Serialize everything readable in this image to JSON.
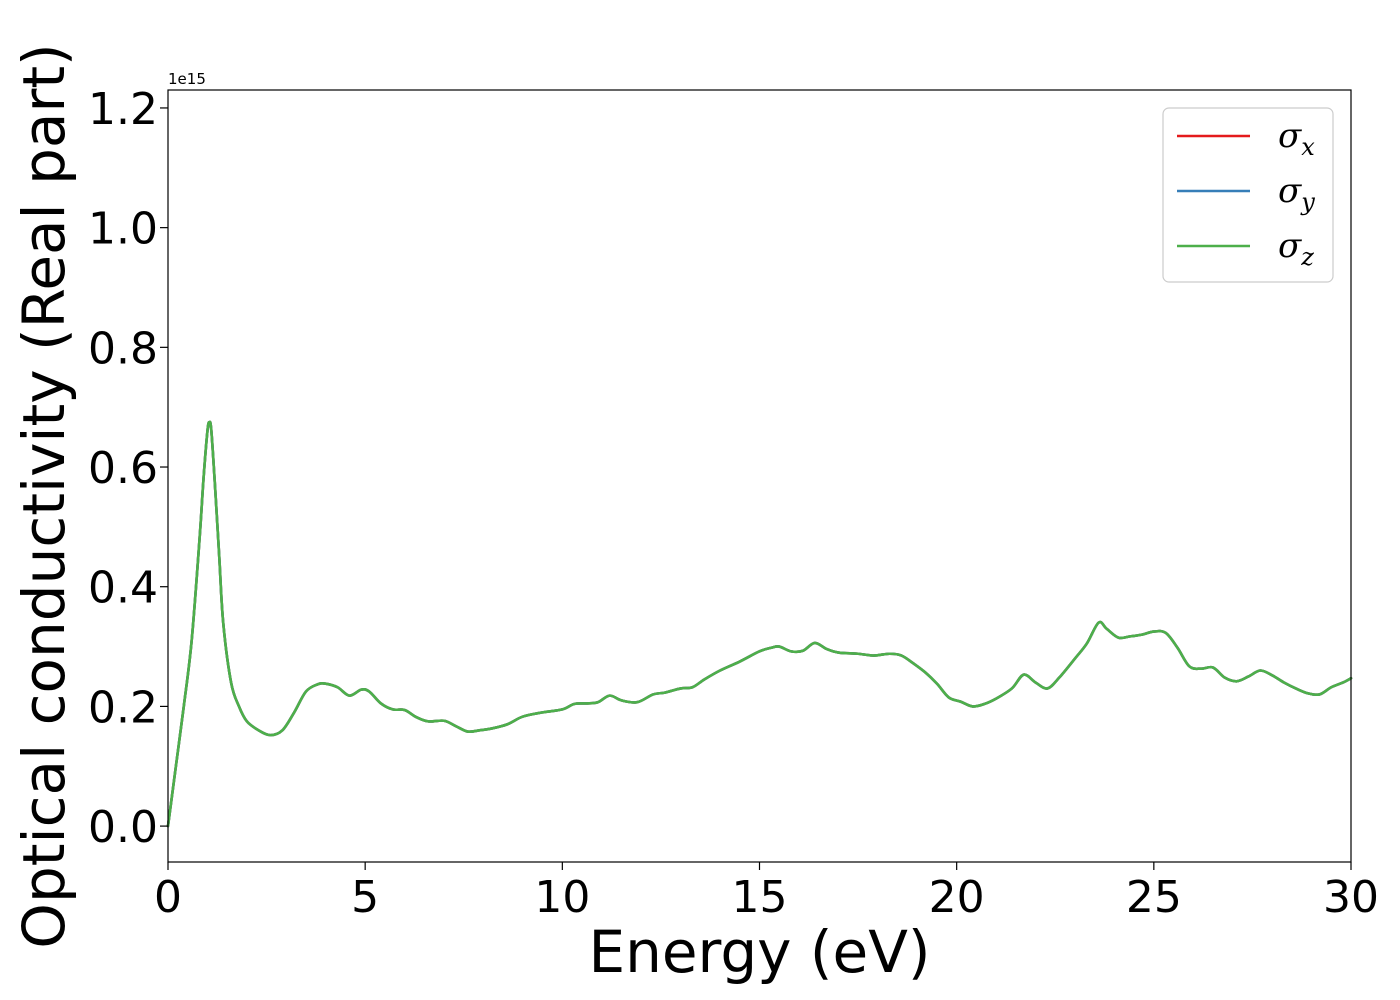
{
  "chart_data": {
    "type": "line",
    "xlabel": "Energy (eV)",
    "ylabel": "Optical conductivity (Real part)",
    "y_offset_label": "1e15",
    "xlim": [
      0,
      30
    ],
    "ylim": [
      -0.06,
      1.23
    ],
    "x_ticks": [
      0,
      5,
      10,
      15,
      20,
      25,
      30
    ],
    "x_tick_labels": [
      "0",
      "5",
      "10",
      "15",
      "20",
      "25",
      "30"
    ],
    "y_ticks": [
      0.0,
      0.2,
      0.4,
      0.6,
      0.8,
      1.0,
      1.2
    ],
    "y_tick_labels": [
      "0.0",
      "0.2",
      "0.4",
      "0.6",
      "0.8",
      "1.0",
      "1.2"
    ],
    "grid": false,
    "legend_position": "top-right",
    "series": [
      {
        "name": "σx",
        "symbol": "σ",
        "subscript": "x",
        "color": "#e41a1c",
        "x": [
          0,
          0.2,
          0.4,
          0.6,
          0.8,
          0.9,
          1.0,
          1.05,
          1.1,
          1.2,
          1.3,
          1.4,
          1.6,
          1.8,
          2.0,
          2.3,
          2.6,
          2.9,
          3.2,
          3.5,
          3.8,
          4.0,
          4.3,
          4.6,
          4.9,
          5.1,
          5.4,
          5.7,
          6.0,
          6.3,
          6.6,
          7.0,
          7.3,
          7.6,
          7.9,
          8.2,
          8.6,
          9.0,
          9.5,
          10.0,
          10.3,
          10.6,
          10.9,
          11.2,
          11.5,
          11.9,
          12.3,
          12.6,
          13.0,
          13.3,
          13.6,
          14.0,
          14.5,
          15.0,
          15.3,
          15.5,
          15.8,
          16.1,
          16.4,
          16.7,
          17.0,
          17.5,
          17.9,
          18.3,
          18.6,
          18.9,
          19.2,
          19.5,
          19.8,
          20.1,
          20.4,
          20.7,
          21.0,
          21.4,
          21.7,
          22.0,
          22.3,
          22.6,
          23.0,
          23.3,
          23.6,
          23.8,
          24.1,
          24.4,
          24.7,
          25.0,
          25.3,
          25.6,
          25.9,
          26.2,
          26.5,
          26.8,
          27.1,
          27.4,
          27.7,
          28.0,
          28.3,
          28.6,
          28.9,
          29.2,
          29.5,
          29.8,
          30.0
        ],
        "values": [
          0.0,
          0.1,
          0.2,
          0.31,
          0.48,
          0.58,
          0.66,
          0.675,
          0.66,
          0.56,
          0.45,
          0.34,
          0.24,
          0.2,
          0.175,
          0.16,
          0.152,
          0.16,
          0.19,
          0.225,
          0.237,
          0.238,
          0.232,
          0.218,
          0.228,
          0.225,
          0.205,
          0.195,
          0.194,
          0.182,
          0.175,
          0.176,
          0.167,
          0.158,
          0.16,
          0.163,
          0.17,
          0.183,
          0.19,
          0.195,
          0.204,
          0.205,
          0.207,
          0.218,
          0.21,
          0.207,
          0.22,
          0.223,
          0.23,
          0.232,
          0.245,
          0.26,
          0.275,
          0.292,
          0.298,
          0.3,
          0.292,
          0.293,
          0.306,
          0.296,
          0.29,
          0.288,
          0.285,
          0.288,
          0.285,
          0.272,
          0.257,
          0.238,
          0.215,
          0.208,
          0.2,
          0.204,
          0.213,
          0.23,
          0.253,
          0.24,
          0.23,
          0.248,
          0.28,
          0.305,
          0.34,
          0.33,
          0.315,
          0.317,
          0.32,
          0.325,
          0.323,
          0.298,
          0.267,
          0.263,
          0.265,
          0.248,
          0.242,
          0.25,
          0.26,
          0.252,
          0.24,
          0.23,
          0.222,
          0.22,
          0.232,
          0.24,
          0.247
        ]
      },
      {
        "name": "σy",
        "symbol": "σ",
        "subscript": "y",
        "color": "#377eb8",
        "x": [
          0,
          0.2,
          0.4,
          0.6,
          0.8,
          0.9,
          1.0,
          1.05,
          1.1,
          1.2,
          1.3,
          1.4,
          1.6,
          1.8,
          2.0,
          2.3,
          2.6,
          2.9,
          3.2,
          3.5,
          3.8,
          4.0,
          4.3,
          4.6,
          4.9,
          5.1,
          5.4,
          5.7,
          6.0,
          6.3,
          6.6,
          7.0,
          7.3,
          7.6,
          7.9,
          8.2,
          8.6,
          9.0,
          9.5,
          10.0,
          10.3,
          10.6,
          10.9,
          11.2,
          11.5,
          11.9,
          12.3,
          12.6,
          13.0,
          13.3,
          13.6,
          14.0,
          14.5,
          15.0,
          15.3,
          15.5,
          15.8,
          16.1,
          16.4,
          16.7,
          17.0,
          17.5,
          17.9,
          18.3,
          18.6,
          18.9,
          19.2,
          19.5,
          19.8,
          20.1,
          20.4,
          20.7,
          21.0,
          21.4,
          21.7,
          22.0,
          22.3,
          22.6,
          23.0,
          23.3,
          23.6,
          23.8,
          24.1,
          24.4,
          24.7,
          25.0,
          25.3,
          25.6,
          25.9,
          26.2,
          26.5,
          26.8,
          27.1,
          27.4,
          27.7,
          28.0,
          28.3,
          28.6,
          28.9,
          29.2,
          29.5,
          29.8,
          30.0
        ],
        "values": [
          0.0,
          0.1,
          0.2,
          0.31,
          0.48,
          0.58,
          0.66,
          0.675,
          0.66,
          0.56,
          0.45,
          0.34,
          0.24,
          0.2,
          0.175,
          0.16,
          0.152,
          0.16,
          0.19,
          0.225,
          0.237,
          0.238,
          0.232,
          0.218,
          0.228,
          0.225,
          0.205,
          0.195,
          0.194,
          0.182,
          0.175,
          0.176,
          0.167,
          0.158,
          0.16,
          0.163,
          0.17,
          0.183,
          0.19,
          0.195,
          0.204,
          0.205,
          0.207,
          0.218,
          0.21,
          0.207,
          0.22,
          0.223,
          0.23,
          0.232,
          0.245,
          0.26,
          0.275,
          0.292,
          0.298,
          0.3,
          0.292,
          0.293,
          0.306,
          0.296,
          0.29,
          0.288,
          0.285,
          0.288,
          0.285,
          0.272,
          0.257,
          0.238,
          0.215,
          0.208,
          0.2,
          0.204,
          0.213,
          0.23,
          0.253,
          0.24,
          0.23,
          0.248,
          0.28,
          0.305,
          0.34,
          0.33,
          0.315,
          0.317,
          0.32,
          0.325,
          0.323,
          0.298,
          0.267,
          0.263,
          0.265,
          0.248,
          0.242,
          0.25,
          0.26,
          0.252,
          0.24,
          0.23,
          0.222,
          0.22,
          0.232,
          0.24,
          0.247
        ]
      },
      {
        "name": "σz",
        "symbol": "σ",
        "subscript": "z",
        "color": "#4daf4a",
        "x": [
          0,
          0.2,
          0.4,
          0.6,
          0.8,
          0.9,
          1.0,
          1.05,
          1.1,
          1.2,
          1.3,
          1.4,
          1.6,
          1.8,
          2.0,
          2.3,
          2.6,
          2.9,
          3.2,
          3.5,
          3.8,
          4.0,
          4.3,
          4.6,
          4.9,
          5.1,
          5.4,
          5.7,
          6.0,
          6.3,
          6.6,
          7.0,
          7.3,
          7.6,
          7.9,
          8.2,
          8.6,
          9.0,
          9.5,
          10.0,
          10.3,
          10.6,
          10.9,
          11.2,
          11.5,
          11.9,
          12.3,
          12.6,
          13.0,
          13.3,
          13.6,
          14.0,
          14.5,
          15.0,
          15.3,
          15.5,
          15.8,
          16.1,
          16.4,
          16.7,
          17.0,
          17.5,
          17.9,
          18.3,
          18.6,
          18.9,
          19.2,
          19.5,
          19.8,
          20.1,
          20.4,
          20.7,
          21.0,
          21.4,
          21.7,
          22.0,
          22.3,
          22.6,
          23.0,
          23.3,
          23.6,
          23.8,
          24.1,
          24.4,
          24.7,
          25.0,
          25.3,
          25.6,
          25.9,
          26.2,
          26.5,
          26.8,
          27.1,
          27.4,
          27.7,
          28.0,
          28.3,
          28.6,
          28.9,
          29.2,
          29.5,
          29.8,
          30.0
        ],
        "values": [
          0.0,
          0.1,
          0.2,
          0.31,
          0.48,
          0.58,
          0.66,
          0.675,
          0.66,
          0.56,
          0.45,
          0.34,
          0.24,
          0.2,
          0.175,
          0.16,
          0.152,
          0.16,
          0.19,
          0.225,
          0.237,
          0.238,
          0.232,
          0.218,
          0.228,
          0.225,
          0.205,
          0.195,
          0.194,
          0.182,
          0.175,
          0.176,
          0.167,
          0.158,
          0.16,
          0.163,
          0.17,
          0.183,
          0.19,
          0.195,
          0.204,
          0.205,
          0.207,
          0.218,
          0.21,
          0.207,
          0.22,
          0.223,
          0.23,
          0.232,
          0.245,
          0.26,
          0.275,
          0.292,
          0.298,
          0.3,
          0.292,
          0.293,
          0.306,
          0.296,
          0.29,
          0.288,
          0.285,
          0.288,
          0.285,
          0.272,
          0.257,
          0.238,
          0.215,
          0.208,
          0.2,
          0.204,
          0.213,
          0.23,
          0.253,
          0.24,
          0.23,
          0.248,
          0.28,
          0.305,
          0.34,
          0.33,
          0.315,
          0.317,
          0.32,
          0.325,
          0.323,
          0.298,
          0.267,
          0.263,
          0.265,
          0.248,
          0.242,
          0.25,
          0.26,
          0.252,
          0.24,
          0.23,
          0.222,
          0.22,
          0.232,
          0.24,
          0.247
        ]
      }
    ]
  }
}
